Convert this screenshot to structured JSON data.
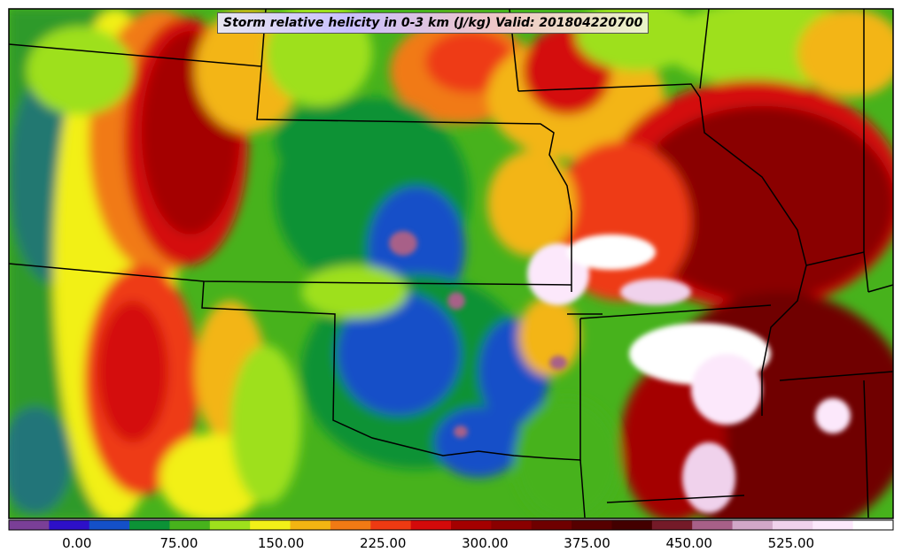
{
  "title": "Storm relative helicity in 0-3 km (J/kg) Valid: 201804220700",
  "colorbar": {
    "colors": [
      "#7a3f97",
      "#2d10c8",
      "#1450c8",
      "#0c9236",
      "#47b21c",
      "#9ee01c",
      "#f2f018",
      "#f3b512",
      "#f17a14",
      "#ee3a12",
      "#d40a0a",
      "#a40000",
      "#8a0000",
      "#6f0000",
      "#560000",
      "#430000",
      "#741a28",
      "#a86088",
      "#d2a8c8",
      "#f0d2ec",
      "#fce8fb",
      "#ffffff"
    ],
    "tick_labels": [
      "0.00",
      "75.00",
      "150.00",
      "225.00",
      "300.00",
      "375.00",
      "450.00",
      "525.00"
    ],
    "tick_values": [
      0,
      75,
      150,
      225,
      300,
      375,
      450,
      525
    ],
    "min": -50,
    "max": 600
  },
  "legend_icons": {
    "state_borders": "state-border-lines",
    "field": "srh-color-field"
  }
}
